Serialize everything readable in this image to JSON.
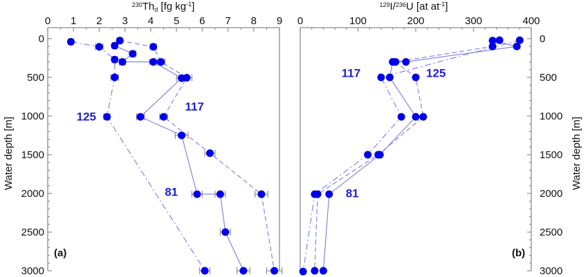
{
  "colors": {
    "series": "#0000ee",
    "line": "#7b7be0",
    "error_bar": "#7a7a7a",
    "axis": "#8c8c8c",
    "station_label": "#1f1fd6"
  },
  "chart_data": [
    {
      "id": "a",
      "panel_label": "(a)",
      "type": "scatter",
      "title": "",
      "xlabel": "²³⁰Th_d [fg kg⁻¹]",
      "xlabel_parts": {
        "sup": "230",
        "main": "Th",
        "sub": "d",
        "unit": " [fg kg",
        "unit_sup": "-1",
        "close": "]"
      },
      "ylabel": "Water depth [m]",
      "xlim": [
        0,
        9
      ],
      "ylim": [
        0,
        3000
      ],
      "y_inverted": true,
      "x_ticks": [
        0,
        1,
        2,
        3,
        4,
        5,
        6,
        7,
        8,
        9
      ],
      "y_ticks": [
        0,
        500,
        1000,
        1500,
        2000,
        2500,
        3000
      ],
      "x_axis_position": "top",
      "y_axis_position": "left",
      "grid": false,
      "has_error_bars": true,
      "series": [
        {
          "name": "125",
          "line_style": "dash-dot",
          "points": [
            [
              0.9,
              40
            ],
            [
              2.0,
              105
            ],
            [
              2.6,
              270
            ],
            [
              2.6,
              500
            ],
            [
              2.3,
              1010
            ],
            [
              6.1,
              3000
            ]
          ],
          "errors": [
            0.1,
            0.15,
            0.1,
            0.15,
            0.12,
            0.2
          ]
        },
        {
          "name": "117",
          "line_style": "dashed",
          "points": [
            [
              2.8,
              25
            ],
            [
              4.1,
              105
            ],
            [
              4.4,
              300
            ],
            [
              5.4,
              505
            ],
            [
              4.5,
              1010
            ],
            [
              6.3,
              1480
            ],
            [
              8.3,
              2010
            ],
            [
              8.8,
              3000
            ]
          ],
          "errors": [
            0.1,
            0.12,
            0.15,
            0.2,
            0.15,
            0.2,
            0.25,
            0.3
          ]
        },
        {
          "name": "81",
          "line_style": "solid",
          "points": [
            [
              2.6,
              90
            ],
            [
              3.3,
              195
            ],
            [
              2.9,
              300
            ],
            [
              4.1,
              300
            ],
            [
              5.2,
              510
            ],
            [
              3.6,
              1010
            ],
            [
              5.2,
              1250
            ],
            [
              5.8,
              2010
            ],
            [
              6.7,
              2010
            ],
            [
              6.9,
              2500
            ],
            [
              7.6,
              3000
            ]
          ],
          "errors": [
            0.1,
            0.12,
            0.12,
            0.15,
            0.2,
            0.15,
            0.25,
            0.2,
            0.2,
            0.2,
            0.25
          ]
        }
      ],
      "annotations": [
        {
          "text": "125",
          "x": 1.5,
          "y": 1060
        },
        {
          "text": "117",
          "x": 5.7,
          "y": 930
        },
        {
          "text": "81",
          "x": 4.8,
          "y": 2030
        }
      ]
    },
    {
      "id": "b",
      "panel_label": "(b)",
      "type": "scatter",
      "title": "",
      "xlabel": "¹²⁹I/²³⁶U [at at⁻¹]",
      "xlabel_parts": {
        "sup1": "129",
        "main1": "I/",
        "sup2": "236",
        "main2": "U",
        "unit": " [at at",
        "unit_sup": "-1",
        "close": "]"
      },
      "ylabel": "Water depth [m]",
      "xlim": [
        0,
        400
      ],
      "ylim": [
        0,
        3000
      ],
      "y_inverted": true,
      "x_ticks": [
        0,
        100,
        200,
        300,
        400
      ],
      "y_ticks": [
        0,
        500,
        1000,
        1500,
        2000,
        2500,
        3000
      ],
      "x_axis_position": "top",
      "y_axis_position": "right",
      "grid": false,
      "has_error_bars": false,
      "series": [
        {
          "name": "125",
          "line_style": "solid",
          "points": [
            [
              333,
              25
            ],
            [
              375,
              100
            ],
            [
              183,
              300
            ],
            [
              160,
              300
            ],
            [
              155,
              500
            ],
            [
              200,
              1010
            ],
            [
              138,
              1500
            ],
            [
              50,
              2010
            ],
            [
              40,
              3000
            ]
          ]
        },
        {
          "name": "117",
          "line_style": "dashed",
          "points": [
            [
              345,
              20
            ],
            [
              333,
              100
            ],
            [
              165,
              300
            ],
            [
              200,
              500
            ],
            [
              213,
              1010
            ],
            [
              135,
              1500
            ],
            [
              30,
              2010
            ],
            [
              25,
              3000
            ]
          ]
        },
        {
          "name": "81",
          "line_style": "dash-dot",
          "points": [
            [
              380,
              20
            ],
            [
              140,
              500
            ],
            [
              175,
              1010
            ],
            [
              117,
              1500
            ],
            [
              25,
              2010
            ],
            [
              5,
              3010
            ]
          ]
        }
      ],
      "annotations": [
        {
          "text": "117",
          "x": 88,
          "y": 495
        },
        {
          "text": "125",
          "x": 235,
          "y": 495
        },
        {
          "text": "81",
          "x": 90,
          "y": 2050
        }
      ]
    }
  ]
}
